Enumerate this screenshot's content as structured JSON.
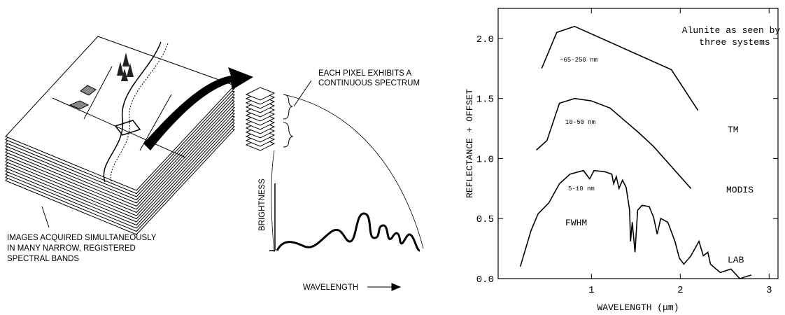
{
  "diagram": {
    "pixel_note": [
      "EACH PIXEL EXHIBITS A",
      "CONTINUOUS SPECTRUM"
    ],
    "cube_note": [
      "IMAGES ACQUIRED SIMULTANEOUSLY",
      "IN MANY NARROW, REGISTERED",
      "SPECTRAL BANDS"
    ],
    "y_label": "BRIGHTNESS",
    "x_label": "WAVELENGTH"
  },
  "chart_data": {
    "type": "line",
    "title": [
      "Alunite as seen by",
      "three systems"
    ],
    "x_label": "WAVELENGTH (μm)",
    "y_label": "REFLECTANCE + OFFSET",
    "xlim": [
      -0.05,
      3.1
    ],
    "ylim": [
      0,
      2.25
    ],
    "xticks": [
      1,
      2,
      3
    ],
    "yticks": [
      {
        "value": 0,
        "label": "0.0"
      },
      0.5,
      {
        "value": 1,
        "label": "1.0"
      },
      1.5,
      {
        "value": 2,
        "label": "2.0"
      }
    ],
    "annotations": [
      "~65-250 nm",
      "10-50 nm",
      "5-10 nm",
      "FWHM"
    ],
    "series": [
      {
        "name": "TM",
        "color": "#000000",
        "x": [
          0.44,
          0.61,
          0.81,
          1.9,
          2.2
        ],
        "values": [
          1.75,
          2.05,
          2.1,
          1.74,
          1.4
        ]
      },
      {
        "name": "MODIS",
        "color": "#000000",
        "x": [
          0.38,
          0.5,
          0.64,
          0.81,
          1.0,
          1.21,
          1.54,
          1.7,
          2.12
        ],
        "values": [
          1.07,
          1.15,
          1.46,
          1.5,
          1.48,
          1.42,
          1.21,
          1.1,
          0.75
        ]
      },
      {
        "name": "LAB",
        "color": "#000000",
        "x": [
          0.2,
          0.32,
          0.4,
          0.52,
          0.64,
          0.76,
          0.91,
          0.98,
          1.03,
          1.15,
          1.23,
          1.25,
          1.28,
          1.31,
          1.35,
          1.39,
          1.43,
          1.44,
          1.46,
          1.49,
          1.52,
          1.57,
          1.65,
          1.7,
          1.74,
          1.78,
          1.86,
          1.94,
          1.99,
          2.04,
          2.12,
          2.21,
          2.26,
          2.31,
          2.34,
          2.45,
          2.57,
          2.67,
          2.8
        ],
        "values": [
          0.1,
          0.4,
          0.54,
          0.63,
          0.79,
          0.87,
          0.9,
          0.83,
          0.9,
          0.89,
          0.87,
          0.79,
          0.85,
          0.75,
          0.82,
          0.76,
          0.57,
          0.31,
          0.47,
          0.22,
          0.57,
          0.61,
          0.6,
          0.51,
          0.37,
          0.5,
          0.47,
          0.31,
          0.17,
          0.12,
          0.19,
          0.31,
          0.19,
          0.22,
          0.12,
          0.05,
          0.08,
          0,
          0.03
        ]
      }
    ]
  }
}
